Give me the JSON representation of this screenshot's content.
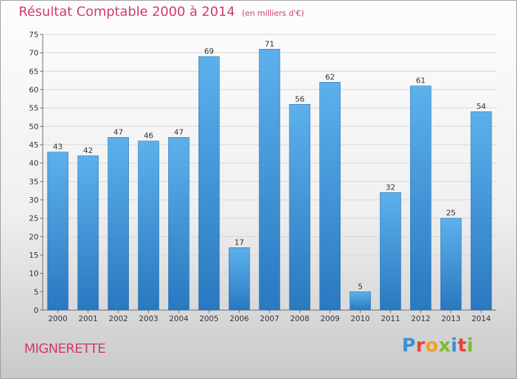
{
  "chart_data": {
    "type": "bar",
    "title": "Résultat Comptable 2000 à 2014",
    "unit": "(en milliers d'€)",
    "categories": [
      "2000",
      "2001",
      "2002",
      "2003",
      "2004",
      "2005",
      "2006",
      "2007",
      "2008",
      "2009",
      "2010",
      "2011",
      "2012",
      "2013",
      "2014"
    ],
    "values": [
      43,
      42,
      47,
      46,
      47,
      69,
      17,
      71,
      56,
      62,
      5,
      32,
      61,
      25,
      54
    ],
    "ylim": [
      0,
      75
    ],
    "yticks": [
      0,
      5,
      10,
      15,
      20,
      25,
      30,
      35,
      40,
      45,
      50,
      55,
      60,
      65,
      70,
      75
    ],
    "grid": true,
    "bar_color": "#3d8fd6",
    "title_color": "#d03a6c"
  },
  "footer": {
    "commune": "MIGNERETTE",
    "logo": "Proxiti"
  }
}
